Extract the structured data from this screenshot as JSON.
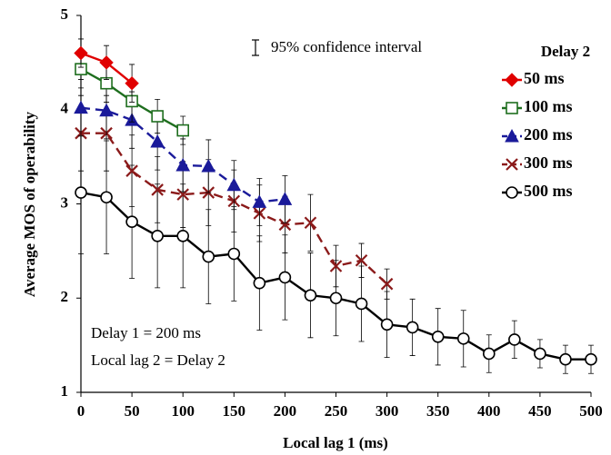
{
  "chart_data": {
    "type": "line",
    "x_label": "Local lag 1 (ms)",
    "y_label": "Average MOS of operability",
    "x": [
      0,
      25,
      50,
      75,
      100,
      125,
      150,
      175,
      200,
      225,
      250,
      275,
      300,
      325,
      350,
      375,
      400,
      425,
      450,
      475,
      500
    ],
    "xlim": [
      0,
      500
    ],
    "ylim": [
      1,
      5
    ],
    "xticks": [
      0,
      50,
      100,
      150,
      200,
      250,
      300,
      350,
      400,
      450,
      500
    ],
    "yticks": [
      1,
      2,
      3,
      4,
      5
    ],
    "legend_title": "Delay 2",
    "legend_position": "right",
    "annotations": [
      "95% confidence interval",
      "Delay 1 = 200 ms",
      "Local lag 2 = Delay 2"
    ],
    "series": [
      {
        "name": "50 ms",
        "color": "#e00000",
        "marker": "diamond",
        "dash": false,
        "values": [
          4.6,
          4.5,
          4.28,
          null,
          null,
          null,
          null,
          null,
          null,
          null,
          null,
          null,
          null,
          null,
          null,
          null,
          null,
          null,
          null,
          null,
          null
        ],
        "errors": [
          0.15,
          0.18,
          0.2,
          null,
          null,
          null,
          null,
          null,
          null,
          null,
          null,
          null,
          null,
          null,
          null,
          null,
          null,
          null,
          null,
          null,
          null
        ]
      },
      {
        "name": "100 ms",
        "color": "#1e6e1e",
        "marker": "square",
        "dash": false,
        "values": [
          4.43,
          4.28,
          4.09,
          3.93,
          3.78,
          null,
          null,
          null,
          null,
          null,
          null,
          null,
          null,
          null,
          null,
          null,
          null,
          null,
          null,
          null,
          null
        ],
        "errors": [
          0.2,
          0.2,
          0.22,
          0.18,
          0.15,
          null,
          null,
          null,
          null,
          null,
          null,
          null,
          null,
          null,
          null,
          null,
          null,
          null,
          null,
          null,
          null
        ]
      },
      {
        "name": "200 ms",
        "color": "#1a1a9a",
        "marker": "triangle",
        "dash": true,
        "values": [
          4.02,
          3.99,
          3.89,
          3.66,
          3.41,
          3.4,
          3.2,
          3.02,
          3.05,
          null,
          null,
          null,
          null,
          null,
          null,
          null,
          null,
          null,
          null,
          null,
          null
        ],
        "errors": [
          0.3,
          0.3,
          0.3,
          0.3,
          0.28,
          0.28,
          0.26,
          0.25,
          0.25,
          null,
          null,
          null,
          null,
          null,
          null,
          null,
          null,
          null,
          null,
          null,
          null
        ]
      },
      {
        "name": "300 ms",
        "color": "#8b1a1a",
        "marker": "x",
        "dash": true,
        "values": [
          3.75,
          3.75,
          3.35,
          3.15,
          3.1,
          3.12,
          3.03,
          2.9,
          2.78,
          2.8,
          2.34,
          2.4,
          2.15,
          null,
          null,
          null,
          null,
          null,
          null,
          null,
          null
        ],
        "errors": [
          0.4,
          0.4,
          0.38,
          0.35,
          0.35,
          0.35,
          0.33,
          0.3,
          0.3,
          0.3,
          0.22,
          0.18,
          0.16,
          null,
          null,
          null,
          null,
          null,
          null,
          null,
          null
        ]
      },
      {
        "name": "500 ms",
        "color": "#000000",
        "marker": "circle",
        "dash": false,
        "values": [
          3.12,
          3.07,
          2.81,
          2.66,
          2.66,
          2.44,
          2.47,
          2.16,
          2.22,
          2.03,
          2.0,
          1.94,
          1.72,
          1.69,
          1.59,
          1.57,
          1.41,
          1.56,
          1.41,
          1.35,
          1.35
        ],
        "errors": [
          0.65,
          0.6,
          0.6,
          0.55,
          0.55,
          0.5,
          0.5,
          0.5,
          0.45,
          0.45,
          0.4,
          0.4,
          0.35,
          0.3,
          0.3,
          0.3,
          0.2,
          0.2,
          0.15,
          0.15,
          0.15
        ]
      }
    ]
  }
}
